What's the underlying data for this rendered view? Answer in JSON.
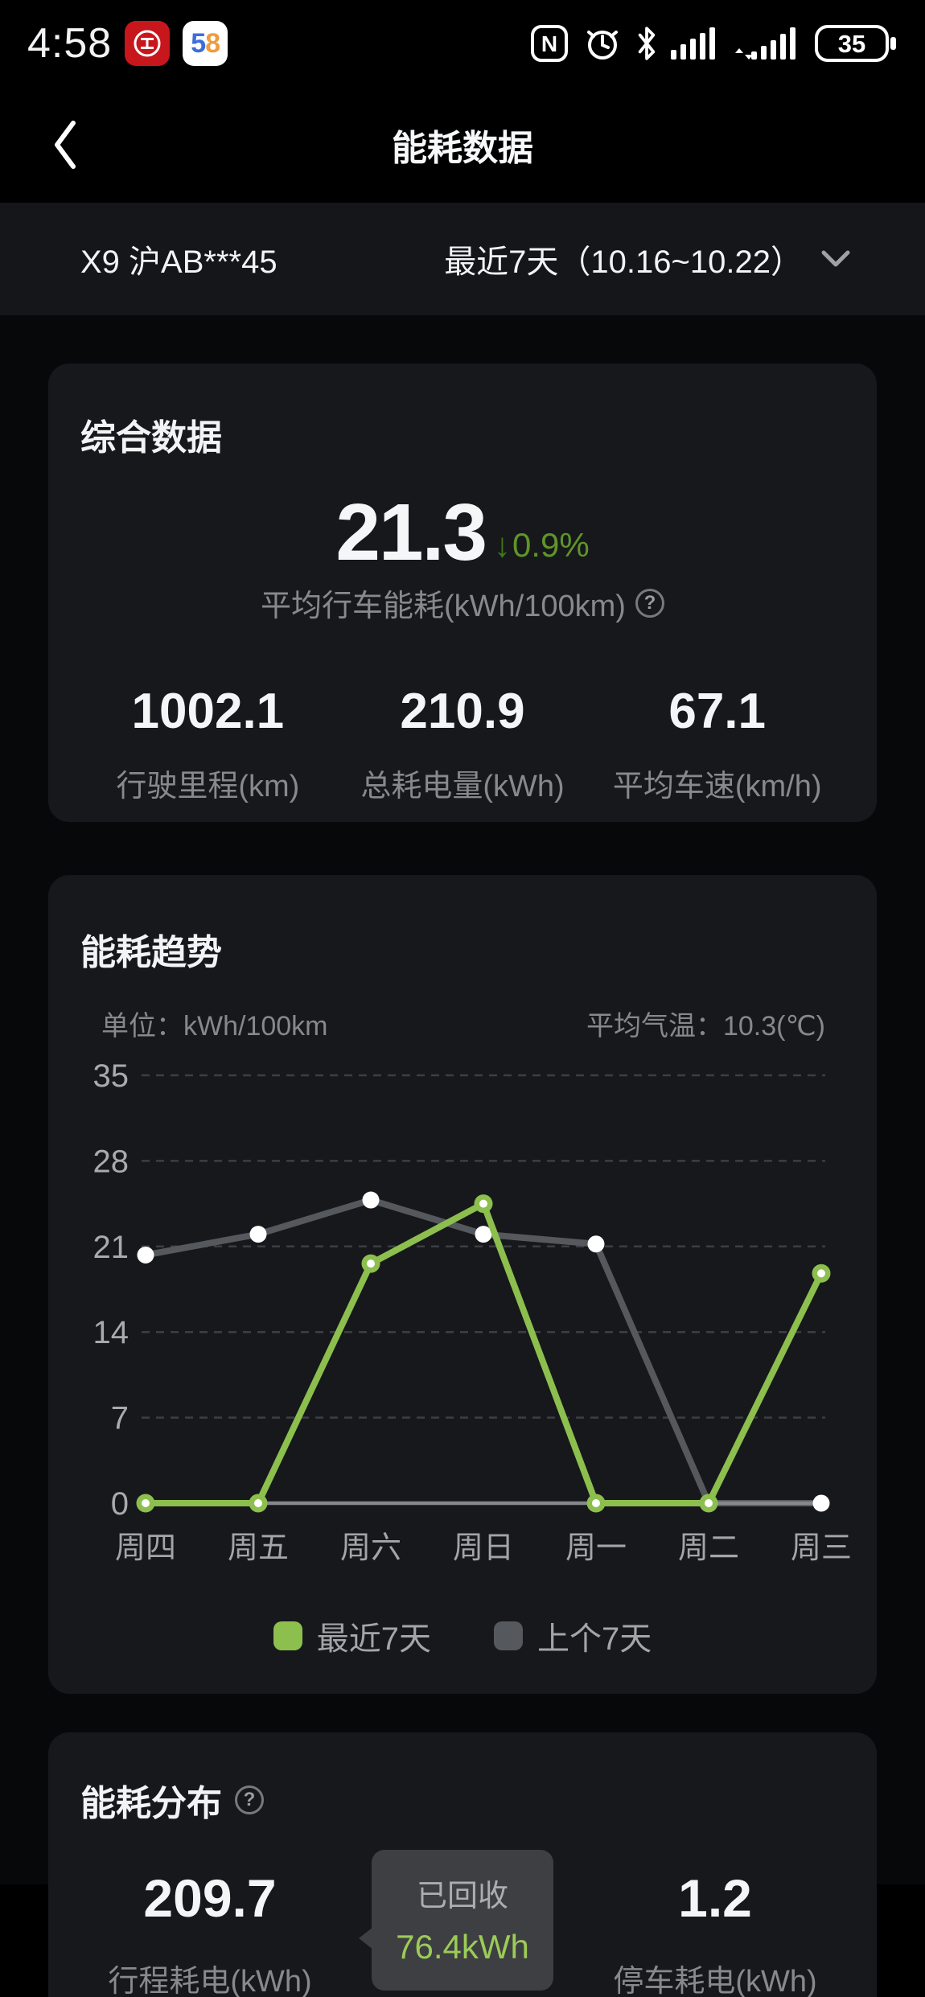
{
  "status_bar": {
    "time": "4:58",
    "battery_percent": "35",
    "nfc_glyph": "N",
    "app58_digits": [
      "5",
      "8"
    ]
  },
  "header": {
    "title": "能耗数据"
  },
  "selector": {
    "vehicle": "X9 沪AB***45",
    "date_range": "最近7天（10.16~10.22）"
  },
  "summary_card": {
    "title": "综合数据",
    "main_value": "21.3",
    "delta_arrow": "↓",
    "delta_value": "0.9%",
    "main_label": "平均行车能耗(kWh/100km)",
    "help_glyph": "?",
    "stats": [
      {
        "value": "1002.1",
        "label": "行驶里程(km)"
      },
      {
        "value": "210.9",
        "label": "总耗电量(kWh)"
      },
      {
        "value": "67.1",
        "label": "平均车速(km/h)"
      }
    ]
  },
  "trend_card": {
    "title": "能耗趋势",
    "unit_label": "单位：kWh/100km",
    "temperature_label": "平均气温：10.3(℃)",
    "chart_data": {
      "type": "line",
      "categories": [
        "周四",
        "周五",
        "周六",
        "周日",
        "周一",
        "周二",
        "周三"
      ],
      "series": [
        {
          "name": "最近7天",
          "color": "#8CBF4D",
          "values": [
            0,
            0,
            19.6,
            24.5,
            0,
            0,
            18.8
          ]
        },
        {
          "name": "上个7天",
          "color": "#55585C",
          "values": [
            20.3,
            22,
            24.8,
            22,
            21.2,
            0,
            0
          ]
        }
      ],
      "unit": "kWh/100km",
      "ylim": [
        0,
        35
      ],
      "yticks": [
        0,
        7,
        14,
        21,
        28,
        35
      ],
      "grid": "dashed-horizontal",
      "legend_position": "bottom"
    }
  },
  "distribution_card": {
    "title": "能耗分布",
    "help_glyph": "?",
    "left_stat": {
      "value": "209.7",
      "label": "行程耗电(kWh)"
    },
    "recovered_tooltip": {
      "label": "已回收",
      "value": "76.4kWh"
    },
    "right_stat": {
      "value": "1.2",
      "label": "停车耗电(kWh)"
    }
  },
  "colors": {
    "accent_green": "#8CBF4D",
    "delta_arrow_green": "#3F7A14",
    "delta_text_green": "#5F9529",
    "tooltip_green": "#9CCB57",
    "prev_line_grey": "#55585C",
    "card_background": "#17181C",
    "axis_line": "#85888C",
    "gridline": "#3B3E42"
  }
}
